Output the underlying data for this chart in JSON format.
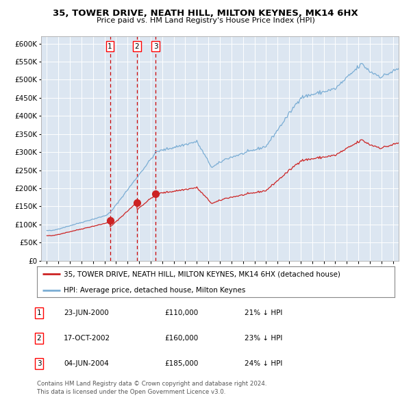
{
  "title": "35, TOWER DRIVE, NEATH HILL, MILTON KEYNES, MK14 6HX",
  "subtitle": "Price paid vs. HM Land Registry's House Price Index (HPI)",
  "legend_line1": "35, TOWER DRIVE, NEATH HILL, MILTON KEYNES, MK14 6HX (detached house)",
  "legend_line2": "HPI: Average price, detached house, Milton Keynes",
  "transactions": [
    {
      "num": 1,
      "date": "23-JUN-2000",
      "price": 110000,
      "pct": "21% ↓ HPI",
      "x_year": 2000.47
    },
    {
      "num": 2,
      "date": "17-OCT-2002",
      "price": 160000,
      "pct": "23% ↓ HPI",
      "x_year": 2002.79
    },
    {
      "num": 3,
      "date": "04-JUN-2004",
      "price": 185000,
      "pct": "24% ↓ HPI",
      "x_year": 2004.42
    }
  ],
  "hpi_color": "#7aadd4",
  "price_color": "#cc2222",
  "plot_bg_color": "#dce6f1",
  "grid_color": "#ffffff",
  "vline_color": "#cc0000",
  "ylim": [
    0,
    620000
  ],
  "xlim_start": 1994.5,
  "xlim_end": 2025.5,
  "footnote1": "Contains HM Land Registry data © Crown copyright and database right 2024.",
  "footnote2": "This data is licensed under the Open Government Licence v3.0."
}
